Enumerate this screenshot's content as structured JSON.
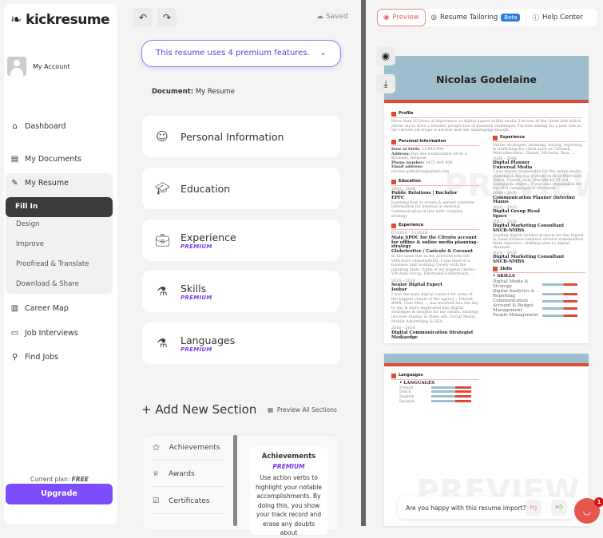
{
  "app": {
    "logo": "kickresume",
    "account": "My Account",
    "plan_label": "Current plan:",
    "plan": "FREE",
    "upgrade": "Upgrade"
  },
  "nav": {
    "dashboard": "Dashboard",
    "documents": "My Documents",
    "resume": "My Resume",
    "sub": [
      "Fill In",
      "Design",
      "Improve",
      "Proofread & Translate",
      "Download & Share"
    ],
    "career": "Career Map",
    "interviews": "Job Interviews",
    "jobs": "Find Jobs"
  },
  "toolbar": {
    "saved": "Saved"
  },
  "editor": {
    "premium_banner": "This resume uses 4 premium features.",
    "doc_label": "Document:",
    "doc_name": "My Resume",
    "sections": [
      {
        "title": "Personal Information",
        "badge": ""
      },
      {
        "title": "Education",
        "badge": ""
      },
      {
        "title": "Experience",
        "badge": "PREMIUM"
      },
      {
        "title": "Skills",
        "badge": "PREMIUM"
      },
      {
        "title": "Languages",
        "badge": "PREMIUM"
      }
    ],
    "add_section": "+ Add New Section",
    "preview_all": "Preview All Sections",
    "add_items": [
      "Achievements",
      "Awards",
      "Certificates"
    ],
    "tip": {
      "title": "Achievements",
      "badge": "PREMIUM",
      "text": "Use action verbs to highlight your notable accomplishments. By doing this, you show your track record and erase any doubts about"
    }
  },
  "preview": {
    "tabs": {
      "preview": "Preview",
      "tailoring": "Resume Tailoring",
      "beta": "Beta",
      "help": "Help Center"
    },
    "watermark": "PREVIEW",
    "resume": {
      "name": "Nicolas Godelaine",
      "profile_h": "Profile",
      "profile": "More than 10 years of experience as digital expert within media, I'm now at the client side which allows me to have a broader perspective of business challenges. I'm now aiming for a new role as my current job scope is unclear and not challenging enough.",
      "personal_h": "Personal Information",
      "dob_l": "Date of birth:",
      "dob": "11/04/1984",
      "addr_l": "Address:",
      "addr": "Rue des combattants 44 bt 2, Brussels, Belgium",
      "phone_l": "Phone number:",
      "phone": "0475 400 404",
      "email_l": "Email address:",
      "email": "nicolas.godelaine@gmail.com",
      "education_h": "Education",
      "edu_date": "2003 – 2006",
      "edu_title": "Public Relations | Bachelor",
      "edu_school": "EPFC",
      "edu_desc": "Learning how to create & spread coherent information for internal or external communication in line with company strategy",
      "exp_h": "Experience",
      "exp_left": [
        {
          "date": "07/2018 – 11/2018",
          "title": "Main SPOC for the Citroën account for offline & online media planning-strategy",
          "org": "Globetrotter / Caricole & Coconut",
          "desc": "In the same line as my previous jobs but with more responsibility. I was head of a business unit working closely with the planning team. Some of my biggest clients : VW-Audi Group, Electrabel,Sodastream, ..."
        },
        {
          "date": "2016 – 2018",
          "title": "Senior Digital Expert",
          "org": "Isobar",
          "desc": "I was the main digital contact for some of the biggest clients of the agency ; Telenet, BMW, Club Med, ... has involved into the day to day & more implicated into digital strategies & insights for my clients. Strategy involves Display & Video ads, Social Media, Mobile Advertising & SEA."
        },
        {
          "date": "2016 – 2016",
          "title": "Digital Communication Strategist",
          "org": "Mediaedge",
          "desc": ""
        }
      ],
      "exp_intro": "Online strategies, planning, buying, reporting & trafficking for client such as Citibank, Mercedes-Benz, Chanel, Michelin, Ikea, ...",
      "exp_right": [
        {
          "date": "2006 – 2008",
          "title": "Digital Planner",
          "org": "Universal Media",
          "desc": "I was mainly responsible for the online media planning & buying of client such as Microsoft, Nikon, Unibet, Axis, One World, VLAM, Santana & others... I was also responsible for the SEA campaigns of Microsoft."
        },
        {
          "date": "2008 – 2010",
          "title": "Communication Planner (interim)",
          "org": "Maxus",
          "desc": ""
        },
        {
          "date": "2010 – 2013",
          "title": "Digital Group Head",
          "org": "Space",
          "desc": ""
        },
        {
          "date": "2013 – 2016",
          "title": "Digital Marketing Consultant",
          "org": "SNCB-NMBS",
          "desc": "Leading digital (media) projects for the Digital & Sales division between several stakeholders. Main objective : shifting sales to digital channels."
        },
        {
          "date": "2016 – 2016",
          "title": "Digital Marketing Consultant",
          "org": "SNCB-NMBS",
          "desc": ""
        }
      ],
      "skills_h": "Skills",
      "skills_sub": "• SKILLS",
      "skills": [
        "Digital Media & Strategy",
        "Digital Analytics & Reporting",
        "Communication",
        "Account & Budget Management",
        "People Management"
      ],
      "lang_h": "Languages",
      "lang_sub": "• LANGUAGES",
      "languages": [
        "French",
        "Dutch",
        "English",
        "Spanish"
      ]
    }
  },
  "feedback": {
    "question": "Are you happy with this resume import?",
    "chat_badge": "1"
  },
  "colors": {
    "accent": "#7c4dff",
    "resume_header": "#9dbfcd",
    "resume_red": "#e04a33"
  }
}
